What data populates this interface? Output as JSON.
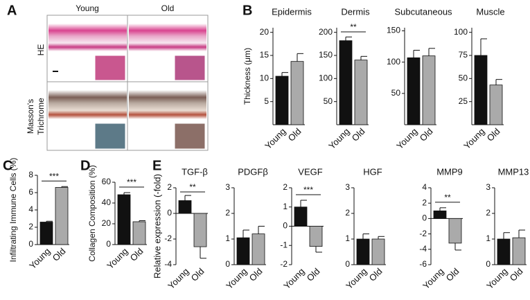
{
  "panel_labels": [
    "A",
    "B",
    "C",
    "D",
    "E"
  ],
  "histology": {
    "columns": [
      "Young",
      "Old"
    ],
    "rows": [
      [
        "HE"
      ],
      [
        "Masson's",
        "Trichrome"
      ]
    ]
  },
  "chart_data": [
    {
      "type": "bar",
      "title": "Epidermis",
      "ylabel": "Thickness (μm)",
      "categories": [
        "Young",
        "Old"
      ],
      "values": [
        10.5,
        13.7
      ],
      "errors": [
        0.8,
        1.7
      ],
      "colors": [
        "#111111",
        "#aaaaaa"
      ],
      "ylim": [
        0,
        21
      ],
      "yticks": [
        5,
        10,
        15,
        20
      ]
    },
    {
      "type": "bar",
      "title": "Dermis",
      "categories": [
        "Young",
        "Old"
      ],
      "values": [
        182,
        140
      ],
      "errors": [
        8,
        8
      ],
      "colors": [
        "#111111",
        "#aaaaaa"
      ],
      "ylim": [
        0,
        210
      ],
      "yticks": [
        50,
        100,
        150,
        200
      ],
      "significance": "**"
    },
    {
      "type": "bar",
      "title": "Subcutaneous",
      "categories": [
        "Young",
        "Old"
      ],
      "values": [
        107,
        110
      ],
      "errors": [
        12,
        12
      ],
      "colors": [
        "#111111",
        "#aaaaaa"
      ],
      "ylim": [
        0,
        155
      ],
      "yticks": [
        50,
        100,
        150
      ]
    },
    {
      "type": "bar",
      "title": "Muscle",
      "categories": [
        "Young",
        "Old"
      ],
      "values": [
        75,
        43
      ],
      "errors": [
        18,
        6
      ],
      "colors": [
        "#111111",
        "#aaaaaa"
      ],
      "ylim": [
        0,
        105
      ],
      "yticks": [
        25,
        50,
        75,
        100
      ]
    },
    {
      "type": "bar",
      "ylabel": "Infiltrating Immune Cells (%)",
      "categories": [
        "Young",
        "Old"
      ],
      "values": [
        2.6,
        6.6
      ],
      "errors": [
        0.1,
        0.1
      ],
      "colors": [
        "#111111",
        "#aaaaaa"
      ],
      "ylim": [
        0,
        8
      ],
      "yticks": [
        0,
        2,
        4,
        6,
        8
      ],
      "significance": "***"
    },
    {
      "type": "bar",
      "ylabel": "Collagen Composition (%)",
      "categories": [
        "Young",
        "Old"
      ],
      "values": [
        48,
        22
      ],
      "errors": [
        2,
        1
      ],
      "colors": [
        "#111111",
        "#aaaaaa"
      ],
      "ylim": [
        0,
        60
      ],
      "yticks": [
        0,
        20,
        40,
        60
      ],
      "significance": "***"
    },
    {
      "type": "bar",
      "title": "TGF-β",
      "ylabel": "Relative expression (-fold)",
      "categories": [
        "Young",
        "Old"
      ],
      "values": [
        1.0,
        -2.6
      ],
      "errors": [
        0.4,
        0.9
      ],
      "colors": [
        "#111111",
        "#aaaaaa"
      ],
      "ylim": [
        -4,
        2
      ],
      "yticks": [
        -4,
        -2,
        0,
        2
      ],
      "significance": "**"
    },
    {
      "type": "bar",
      "title": "PDGFβ",
      "categories": [
        "Young",
        "Old"
      ],
      "values": [
        1.05,
        1.2
      ],
      "errors": [
        0.3,
        0.3
      ],
      "colors": [
        "#111111",
        "#aaaaaa"
      ],
      "ylim": [
        0,
        3
      ],
      "yticks": [
        0,
        1,
        2,
        3
      ]
    },
    {
      "type": "bar",
      "title": "VEGF",
      "categories": [
        "Young",
        "Old"
      ],
      "values": [
        1.0,
        -1.05
      ],
      "errors": [
        0.35,
        0.3
      ],
      "colors": [
        "#111111",
        "#aaaaaa"
      ],
      "ylim": [
        -2,
        2
      ],
      "yticks": [
        -2,
        -1,
        0,
        1,
        2
      ],
      "significance": "***"
    },
    {
      "type": "bar",
      "title": "HGF",
      "categories": [
        "Young",
        "Old"
      ],
      "values": [
        1.0,
        1.0
      ],
      "errors": [
        0.2,
        0.1
      ],
      "colors": [
        "#111111",
        "#aaaaaa"
      ],
      "ylim": [
        0,
        3
      ],
      "yticks": [
        0,
        1,
        2,
        3
      ]
    },
    {
      "type": "bar",
      "title": "MMP9",
      "categories": [
        "Young",
        "Old"
      ],
      "values": [
        1.0,
        -3.2
      ],
      "errors": [
        0.4,
        0.9
      ],
      "colors": [
        "#111111",
        "#aaaaaa"
      ],
      "ylim": [
        -6,
        4
      ],
      "yticks": [
        -6,
        -4,
        -2,
        0,
        2,
        4
      ],
      "significance": "**"
    },
    {
      "type": "bar",
      "title": "MMP13",
      "categories": [
        "Young",
        "Old"
      ],
      "values": [
        1.0,
        1.05
      ],
      "errors": [
        0.25,
        0.3
      ],
      "colors": [
        "#111111",
        "#aaaaaa"
      ],
      "ylim": [
        0,
        3
      ],
      "yticks": [
        0,
        1,
        2,
        3
      ]
    }
  ]
}
